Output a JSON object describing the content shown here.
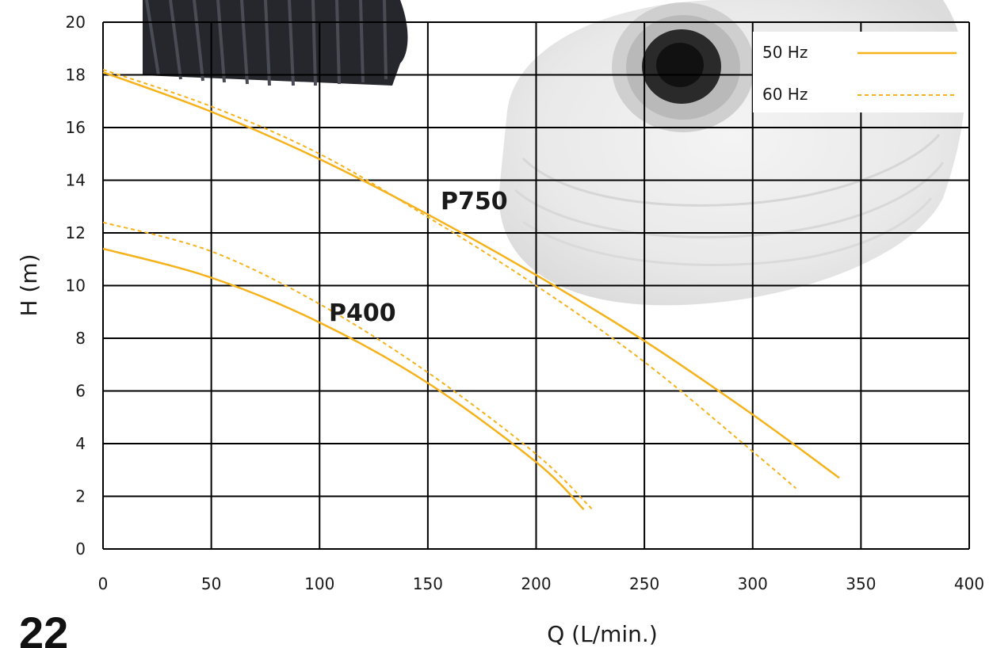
{
  "page_number": "22",
  "colors": {
    "curve": "#f5b21b",
    "grid": "#000000"
  },
  "images": [
    "pump-photo",
    "hose-photo"
  ],
  "chart_data": {
    "type": "line",
    "title": "",
    "xlabel": "Q (L/min.)",
    "ylabel": "H (m)",
    "xlim": [
      0,
      400
    ],
    "ylim": [
      0,
      20
    ],
    "x_ticks": [
      "0",
      "50",
      "100",
      "150",
      "200",
      "250",
      "300",
      "350",
      "400"
    ],
    "y_ticks": [
      "0",
      "2",
      "4",
      "6",
      "8",
      "10",
      "12",
      "14",
      "16",
      "18",
      "20"
    ],
    "grid": true,
    "legend": {
      "position": "top-right",
      "entries": [
        {
          "label": "50 Hz",
          "style": "solid"
        },
        {
          "label": "60 Hz",
          "style": "dashed"
        }
      ]
    },
    "curve_labels": [
      {
        "text": "P750",
        "model": "P750"
      },
      {
        "text": "P400",
        "model": "P400"
      }
    ],
    "series": [
      {
        "model": "P750",
        "frequency": "50 Hz",
        "style": "solid",
        "x": [
          0,
          50,
          100,
          150,
          200,
          250,
          300,
          340
        ],
        "y": [
          18.1,
          16.6,
          14.8,
          12.7,
          10.4,
          7.9,
          5.1,
          2.7
        ]
      },
      {
        "model": "P750",
        "frequency": "60 Hz",
        "style": "dashed",
        "x": [
          0,
          50,
          100,
          150,
          200,
          250,
          300,
          320
        ],
        "y": [
          18.2,
          16.8,
          15.0,
          12.6,
          10.0,
          7.1,
          3.7,
          2.3
        ]
      },
      {
        "model": "P400",
        "frequency": "50 Hz",
        "style": "solid",
        "x": [
          0,
          50,
          100,
          150,
          200,
          222
        ],
        "y": [
          11.4,
          10.3,
          8.6,
          6.3,
          3.3,
          1.5
        ]
      },
      {
        "model": "P400",
        "frequency": "60 Hz",
        "style": "dashed",
        "x": [
          0,
          50,
          100,
          150,
          200,
          226
        ],
        "y": [
          12.4,
          11.3,
          9.3,
          6.7,
          3.6,
          1.5
        ]
      }
    ]
  }
}
